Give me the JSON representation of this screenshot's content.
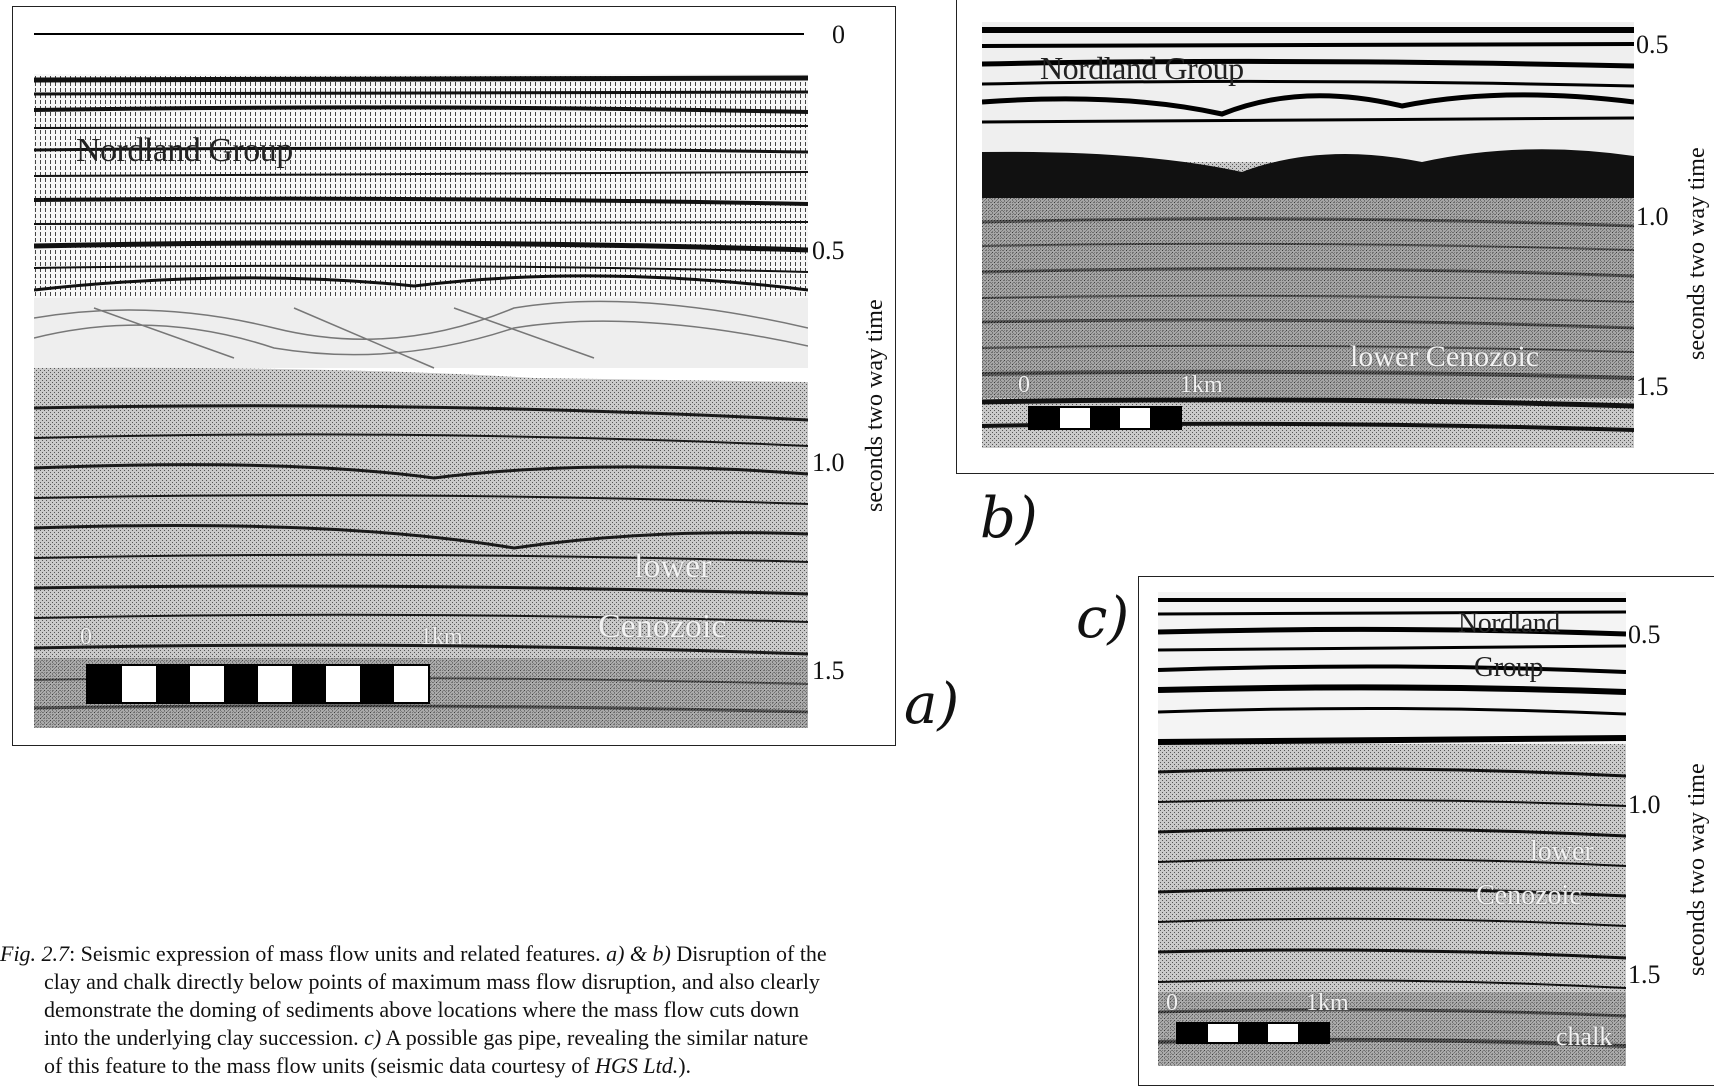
{
  "panels": {
    "a": {
      "letter": "a)",
      "axis_title": "seconds two way time",
      "ticks": [
        "0",
        "0.5",
        "1.0",
        "1.5"
      ],
      "upper_unit": "Nordland Group",
      "lower_unit_line1": "lower",
      "lower_unit_line2": "Cenozoic",
      "scale_start": "0",
      "scale_end": "1km"
    },
    "b": {
      "letter": "b)",
      "axis_title": "seconds two way time",
      "ticks": [
        "0.5",
        "1.0",
        "1.5"
      ],
      "upper_unit": "Nordland Group",
      "lower_unit": "lower Cenozoic",
      "scale_start": "0",
      "scale_end": "1km"
    },
    "c": {
      "letter": "c)",
      "axis_title": "seconds two way time",
      "ticks": [
        "0.5",
        "1.0",
        "1.5"
      ],
      "upper_unit_line1": "Nordland",
      "upper_unit_line2": "Group",
      "lower_unit_line1": "lower",
      "lower_unit_line2": "Cenozoic",
      "bottom_unit": "chalk",
      "scale_start": "0",
      "scale_end": "1km"
    }
  },
  "caption": {
    "fig_label": "Fig. 2.7",
    "line1_a": ": Seismic expression of mass flow units and related features. ",
    "line1_ref": "a) & b)",
    "line1_b": " Disruption of the",
    "line2": "clay and chalk directly below points of maximum mass flow disruption, and also clearly",
    "line3": "demonstrate the doming of sediments above locations where the mass flow cuts down",
    "line4_a": "into the underlying clay succession. ",
    "line4_ref": "c)",
    "line4_b": " A possible gas pipe, revealing the similar nature",
    "line5_a": "of this feature to the mass flow units (seismic data courtesy of ",
    "line5_company": "HGS Ltd.",
    "line5_b": ")."
  }
}
